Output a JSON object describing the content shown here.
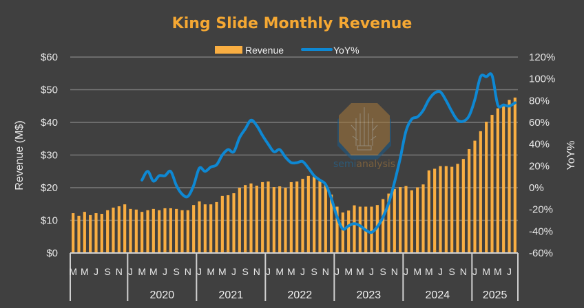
{
  "chart_data": {
    "type": "bar",
    "title": "King Slide Monthly Revenue",
    "ylabel": "Revenue (M$)",
    "y2label": "YoY%",
    "ylim": [
      0,
      60
    ],
    "y2lim": [
      -60,
      120
    ],
    "yticks": [
      "$0",
      "$10",
      "$20",
      "$30",
      "$40",
      "$50",
      "$60"
    ],
    "y2ticks": [
      "-60%",
      "-40%",
      "-20%",
      "0%",
      "20%",
      "40%",
      "60%",
      "80%",
      "100%",
      "120%"
    ],
    "grid": true,
    "legend_position": "top",
    "legend": [
      {
        "name": "Revenue",
        "type": "bar",
        "color": "#F9AE42"
      },
      {
        "name": "YoY%",
        "type": "line",
        "color": "#0E88D3"
      }
    ],
    "year_groups": [
      {
        "year": "",
        "months": [
          "M",
          "A",
          "M",
          "J",
          "J",
          "A",
          "S",
          "O",
          "N",
          "D"
        ],
        "labels": [
          "M",
          "M",
          "J",
          "S",
          "N"
        ]
      },
      {
        "year": "2020",
        "months": [
          "J",
          "F",
          "M",
          "A",
          "M",
          "J",
          "J",
          "A",
          "S",
          "O",
          "N",
          "D"
        ],
        "labels": [
          "J",
          "M",
          "M",
          "J",
          "S",
          "N"
        ]
      },
      {
        "year": "2021",
        "months": [
          "J",
          "F",
          "M",
          "A",
          "M",
          "J",
          "J",
          "A",
          "S",
          "O",
          "N",
          "D"
        ],
        "labels": [
          "J",
          "M",
          "M",
          "J",
          "S",
          "N"
        ]
      },
      {
        "year": "2022",
        "months": [
          "J",
          "F",
          "M",
          "A",
          "M",
          "J",
          "J",
          "A",
          "S",
          "O",
          "N",
          "D"
        ],
        "labels": [
          "J",
          "M",
          "M",
          "J",
          "S",
          "N"
        ]
      },
      {
        "year": "2023",
        "months": [
          "J",
          "F",
          "M",
          "A",
          "M",
          "J",
          "J",
          "A",
          "S",
          "O",
          "N",
          "D"
        ],
        "labels": [
          "J",
          "M",
          "M",
          "J",
          "S",
          "N"
        ]
      },
      {
        "year": "2024",
        "months": [
          "J",
          "F",
          "M",
          "A",
          "M",
          "J",
          "J",
          "A",
          "S",
          "O",
          "N",
          "D"
        ],
        "labels": [
          "J",
          "M",
          "M",
          "J",
          "S",
          "N"
        ]
      },
      {
        "year": "2025",
        "months": [
          "J",
          "F",
          "M",
          "A",
          "M",
          "J",
          "J",
          "A"
        ],
        "labels": [
          "J",
          "M",
          "M",
          "J"
        ]
      }
    ],
    "series": [
      {
        "name": "Revenue",
        "axis": "left",
        "values": [
          12.2,
          11.4,
          12.6,
          11.6,
          12.2,
          12.0,
          13.1,
          13.9,
          14.3,
          14.9,
          13.5,
          13.3,
          12.6,
          13.1,
          13.5,
          13.1,
          13.7,
          13.7,
          13.5,
          13.1,
          13.1,
          14.7,
          15.8,
          14.9,
          14.9,
          15.6,
          17.5,
          17.7,
          18.3,
          20.0,
          20.8,
          21.3,
          20.6,
          21.7,
          21.9,
          20.2,
          20.4,
          20.0,
          21.7,
          21.9,
          22.7,
          23.6,
          23.4,
          22.1,
          21.1,
          17.9,
          14.2,
          12.4,
          13.0,
          14.6,
          14.2,
          14.2,
          14.2,
          14.7,
          16.5,
          18.2,
          19.6,
          20.2,
          20.5,
          19.2,
          20.1,
          21.0,
          25.3,
          25.8,
          26.6,
          26.6,
          26.4,
          27.3,
          28.8,
          31.8,
          34.4,
          37.3,
          40.2,
          42.3,
          44.3,
          45.2,
          46.9,
          47.6
        ]
      },
      {
        "name": "YoY%",
        "axis": "right",
        "start_index": 12,
        "values": [
          7,
          15,
          6,
          11,
          11,
          15,
          2,
          -6,
          -8,
          2,
          18,
          15,
          19,
          21,
          30,
          35,
          33,
          46,
          54,
          62,
          57,
          48,
          40,
          33,
          35,
          28,
          23,
          23,
          24,
          18,
          11,
          7,
          3,
          -10,
          -27,
          -38,
          -35,
          -33,
          -35,
          -39,
          -41,
          -36,
          -27,
          -14,
          5,
          27,
          52,
          63,
          65,
          71,
          81,
          87,
          88,
          80,
          70,
          62,
          61,
          66,
          81,
          102,
          102,
          103,
          76,
          76,
          75,
          78
        ]
      }
    ]
  },
  "watermark": {
    "text_part1": "semi",
    "text_part2": "analysis"
  }
}
